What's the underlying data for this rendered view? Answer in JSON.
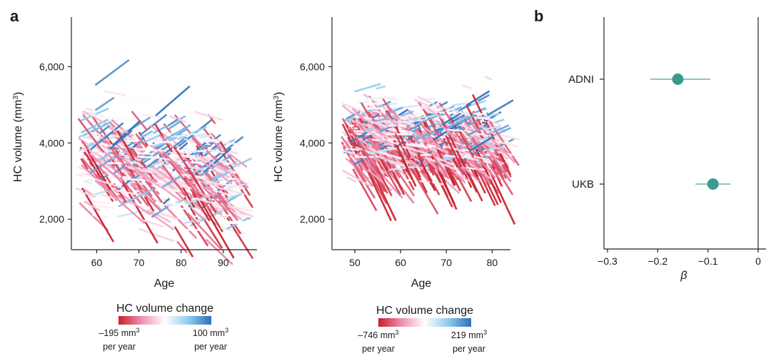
{
  "panel_a_label": "a",
  "panel_b_label": "b",
  "chart_data": [
    {
      "type": "line",
      "description_of_series": "individual hippocampal volume trajectories (each line segment = one participant across visits)",
      "xlabel": "Age",
      "ylabel_prefix": "HC volume (mm",
      "ylabel_sup": "3",
      "ylabel_suffix": ")",
      "xlim": [
        54,
        98
      ],
      "ylim": [
        1200,
        7300
      ],
      "xticks": [
        60,
        70,
        80,
        90
      ],
      "yticks": [
        2000,
        4000,
        6000
      ],
      "ytick_labels": [
        "2,000",
        "4,000",
        "6,000"
      ],
      "age_range": [
        55,
        93
      ],
      "volume_mean": 3350,
      "volume_sd": 600,
      "n_segments": 520,
      "seed": 11,
      "colorbar": {
        "title": "HC volume change",
        "min_label_value": "–195 mm",
        "min_label_unit": "per year",
        "max_label_value": "100 mm",
        "max_label_unit": "per year",
        "sup": "3",
        "min": -195,
        "max": 100,
        "colors": [
          "#c8202a",
          "#ee8fb4",
          "#ffffff",
          "#8fcdf0",
          "#2f6fb8"
        ]
      }
    },
    {
      "type": "line",
      "description_of_series": "individual hippocampal volume trajectories (each line segment = one participant across visits)",
      "xlabel": "Age",
      "ylabel_prefix": "HC volume (mm",
      "ylabel_sup": "3",
      "ylabel_suffix": ")",
      "xlim": [
        45,
        84
      ],
      "ylim": [
        1200,
        7300
      ],
      "xticks": [
        50,
        60,
        70,
        80
      ],
      "yticks": [
        2000,
        4000,
        6000
      ],
      "ytick_labels": [
        "2,000",
        "4,000",
        "6,000"
      ],
      "age_range": [
        47,
        82
      ],
      "volume_mean": 4150,
      "volume_sd": 420,
      "n_segments": 900,
      "seed": 29,
      "colorbar": {
        "title": "HC volume change",
        "min_label_value": "–746 mm",
        "min_label_unit": "per year",
        "max_label_value": "219 mm",
        "max_label_unit": "per year",
        "sup": "3",
        "min": -746,
        "max": 219,
        "colors": [
          "#c8202a",
          "#ee8fb4",
          "#ffffff",
          "#8fcdf0",
          "#2f6fb8"
        ]
      }
    },
    {
      "type": "scatter",
      "subtype": "forest",
      "xlabel": "β",
      "xlim": [
        -0.315,
        0.015
      ],
      "xticks": [
        -0.3,
        -0.2,
        -0.1,
        0
      ],
      "xtick_labels": [
        "−0.3",
        "−0.2",
        "−0.1",
        "0"
      ],
      "reference_line": 0,
      "categories": [
        "ADNI",
        "UKB"
      ],
      "estimates": [
        -0.16,
        -0.09
      ],
      "ci_low": [
        -0.215,
        -0.125
      ],
      "ci_high": [
        -0.095,
        -0.055
      ],
      "color": "#3a9a90"
    }
  ]
}
